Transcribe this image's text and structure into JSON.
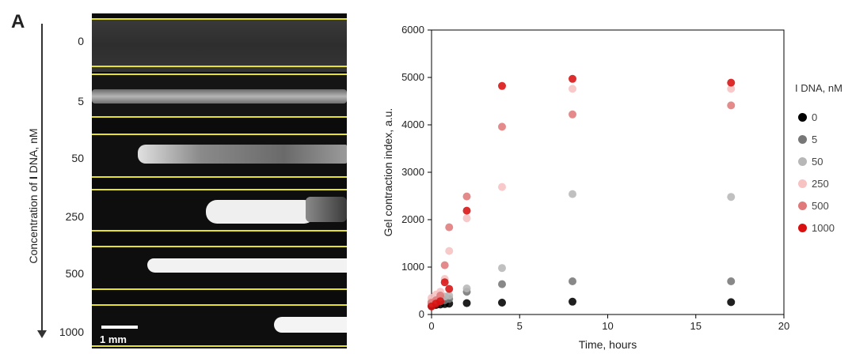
{
  "panel_label": "A",
  "concentration_axis": {
    "title_prefix": "Concentration of ",
    "title_bold": "I",
    "title_suffix": " DNA, nM",
    "levels": [
      "0",
      "5",
      "50",
      "250",
      "500",
      "1000"
    ]
  },
  "scale_bar": {
    "label": "1 mm"
  },
  "colors": {
    "guide_lines": "#e6e32a",
    "c0": "#000000",
    "c5": "#777777",
    "c50": "#b7b7b7",
    "c250": "#f6c2c2",
    "c500": "#e07a7a",
    "c1000": "#d81010"
  },
  "chart_data": {
    "type": "scatter",
    "xlabel": "Time, hours",
    "ylabel": "Gel contraction index, a.u.",
    "xlim": [
      0,
      20
    ],
    "ylim": [
      0,
      6000
    ],
    "xticks": [
      "0",
      "5",
      "10",
      "15",
      "20"
    ],
    "yticks": [
      "0",
      "1000",
      "2000",
      "3000",
      "4000",
      "5000",
      "6000"
    ],
    "grid": false,
    "legend_title": "I DNA, nM",
    "legend_position": "right",
    "series": [
      {
        "name": "0",
        "color": "#000000",
        "x": [
          0,
          0.25,
          0.5,
          0.75,
          1,
          2,
          4,
          8,
          17
        ],
        "y": [
          180,
          200,
          210,
          220,
          230,
          240,
          250,
          270,
          260
        ]
      },
      {
        "name": "5",
        "color": "#777777",
        "x": [
          0,
          0.25,
          0.5,
          0.75,
          1,
          2,
          4,
          8,
          17
        ],
        "y": [
          230,
          260,
          280,
          300,
          330,
          480,
          640,
          700,
          700
        ]
      },
      {
        "name": "50",
        "color": "#b7b7b7",
        "x": [
          0,
          0.25,
          0.5,
          0.75,
          1,
          2,
          4,
          8,
          17
        ],
        "y": [
          280,
          320,
          360,
          380,
          400,
          550,
          980,
          2540,
          2480
        ]
      },
      {
        "name": "250",
        "color": "#f6c2c2",
        "x": [
          0,
          0.25,
          0.5,
          0.75,
          1,
          2,
          4,
          8,
          17
        ],
        "y": [
          350,
          420,
          480,
          750,
          1340,
          2030,
          2690,
          4760,
          4760
        ]
      },
      {
        "name": "500",
        "color": "#e07a7a",
        "x": [
          0,
          0.25,
          0.5,
          0.75,
          1,
          2,
          4,
          8,
          17
        ],
        "y": [
          250,
          300,
          400,
          1040,
          1840,
          2490,
          3960,
          4220,
          4410
        ]
      },
      {
        "name": "1000",
        "color": "#d81010",
        "x": [
          0,
          0.25,
          0.5,
          0.75,
          1,
          2,
          4,
          8,
          17
        ],
        "y": [
          170,
          230,
          280,
          680,
          540,
          2190,
          4820,
          4970,
          4890
        ]
      }
    ]
  }
}
